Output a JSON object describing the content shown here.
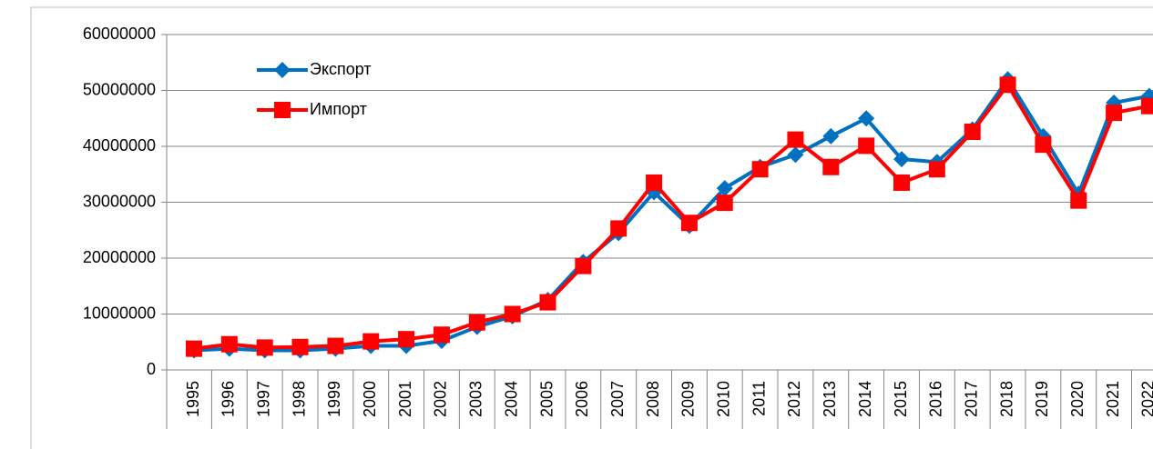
{
  "chart_data": {
    "type": "line",
    "categories": [
      "1995",
      "1996",
      "1997",
      "1998",
      "1999",
      "2000",
      "2001",
      "2002",
      "2003",
      "2004",
      "2005",
      "2006",
      "2007",
      "2008",
      "2009",
      "2010",
      "2011",
      "2012",
      "2013",
      "2014",
      "2015",
      "2016",
      "2017",
      "2018",
      "2019",
      "2020",
      "2021",
      "2022"
    ],
    "series": [
      {
        "name": "Экспорт",
        "color": "#0070c0",
        "marker": "diamond",
        "values": [
          3500000,
          3800000,
          3500000,
          3500000,
          3800000,
          4300000,
          4300000,
          5200000,
          7700000,
          9600000,
          12500000,
          19300000,
          24500000,
          31800000,
          25800000,
          32500000,
          36300000,
          38500000,
          41800000,
          45000000,
          37700000,
          37200000,
          43000000,
          52000000,
          41800000,
          31500000,
          47800000,
          49000000
        ]
      },
      {
        "name": "Импорт",
        "color": "#ff0000",
        "marker": "square",
        "values": [
          3800000,
          4600000,
          4000000,
          4100000,
          4300000,
          5100000,
          5500000,
          6300000,
          8500000,
          10000000,
          12100000,
          18600000,
          25300000,
          33500000,
          26300000,
          29900000,
          35900000,
          41200000,
          36300000,
          40100000,
          33500000,
          35900000,
          42600000,
          51000000,
          40300000,
          30300000,
          46000000,
          47200000
        ]
      }
    ],
    "ylim": [
      0,
      60000000
    ],
    "yticks": [
      0,
      10000000,
      20000000,
      30000000,
      40000000,
      50000000,
      60000000
    ],
    "grid": true,
    "legend": "top-left"
  }
}
